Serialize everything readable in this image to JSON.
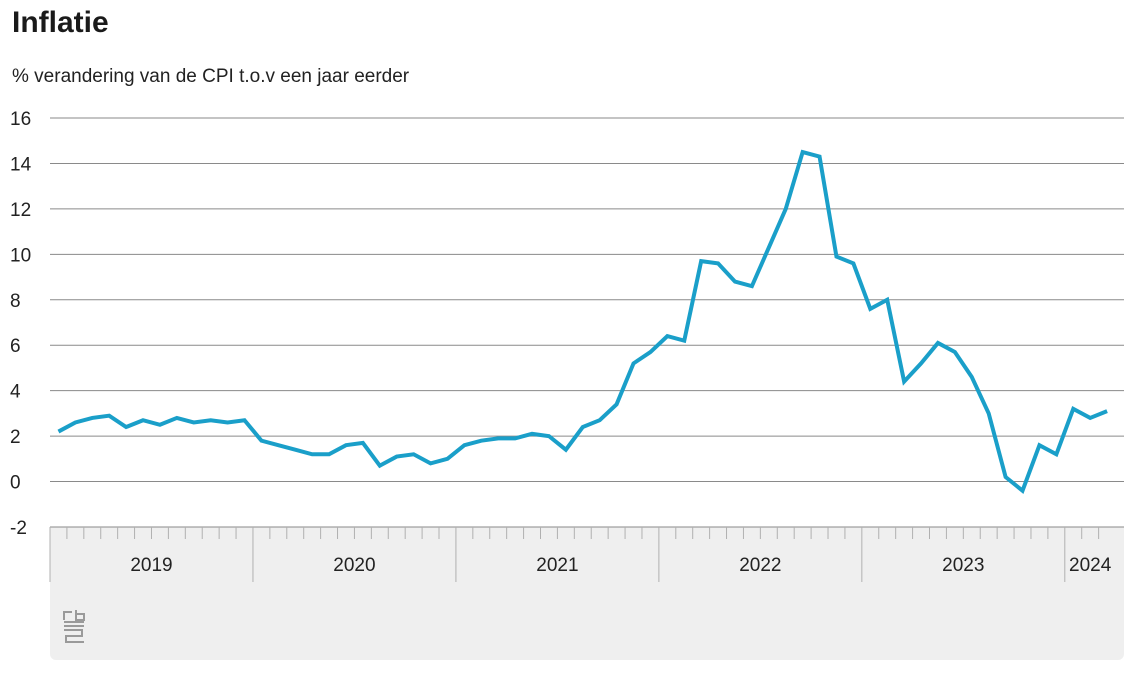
{
  "title": "Inflatie",
  "subtitle": "% verandering van de CPI t.o.v een jaar eerder",
  "colors": {
    "line": "#1a9fc9",
    "grid": "#8a8a8a",
    "axis_band": "#efefef"
  },
  "logo_icon": "cbs-logo",
  "chart_data": {
    "type": "line",
    "title": "Inflatie",
    "ylabel": "% verandering van de CPI t.o.v een jaar eerder",
    "ylim": [
      -2,
      16
    ],
    "y_ticks": [
      16,
      14,
      12,
      10,
      8,
      6,
      4,
      2,
      0,
      -2
    ],
    "grid": true,
    "x_categories": [
      "2019",
      "2020",
      "2021",
      "2022",
      "2023",
      "2024"
    ],
    "x_start": "2019-01",
    "x_end": "2024-03",
    "series": [
      {
        "name": "",
        "x": [
          "2019-01",
          "2019-02",
          "2019-03",
          "2019-04",
          "2019-05",
          "2019-06",
          "2019-07",
          "2019-08",
          "2019-09",
          "2019-10",
          "2019-11",
          "2019-12",
          "2020-01",
          "2020-02",
          "2020-03",
          "2020-04",
          "2020-05",
          "2020-06",
          "2020-07",
          "2020-08",
          "2020-09",
          "2020-10",
          "2020-11",
          "2020-12",
          "2021-01",
          "2021-02",
          "2021-03",
          "2021-04",
          "2021-05",
          "2021-06",
          "2021-07",
          "2021-08",
          "2021-09",
          "2021-10",
          "2021-11",
          "2021-12",
          "2022-01",
          "2022-02",
          "2022-03",
          "2022-04",
          "2022-05",
          "2022-06",
          "2022-07",
          "2022-08",
          "2022-09",
          "2022-10",
          "2022-11",
          "2022-12",
          "2023-01",
          "2023-02",
          "2023-03",
          "2023-04",
          "2023-05",
          "2023-06",
          "2023-07",
          "2023-08",
          "2023-09",
          "2023-10",
          "2023-11",
          "2023-12",
          "2024-01",
          "2024-02",
          "2024-03"
        ],
        "values": [
          2.2,
          2.6,
          2.8,
          2.9,
          2.4,
          2.7,
          2.5,
          2.8,
          2.6,
          2.7,
          2.6,
          2.7,
          1.8,
          1.6,
          1.4,
          1.2,
          1.2,
          1.6,
          1.7,
          0.7,
          1.1,
          1.2,
          0.8,
          1.0,
          1.6,
          1.8,
          1.9,
          1.9,
          2.1,
          2.0,
          1.4,
          2.4,
          2.7,
          3.4,
          5.2,
          5.7,
          6.4,
          6.2,
          9.7,
          9.6,
          8.8,
          8.6,
          10.3,
          12.0,
          14.5,
          14.3,
          9.9,
          9.6,
          7.6,
          8.0,
          4.4,
          5.2,
          6.1,
          5.7,
          4.6,
          3.0,
          0.2,
          -0.4,
          1.6,
          1.2,
          3.2,
          2.8,
          3.1
        ]
      }
    ]
  }
}
